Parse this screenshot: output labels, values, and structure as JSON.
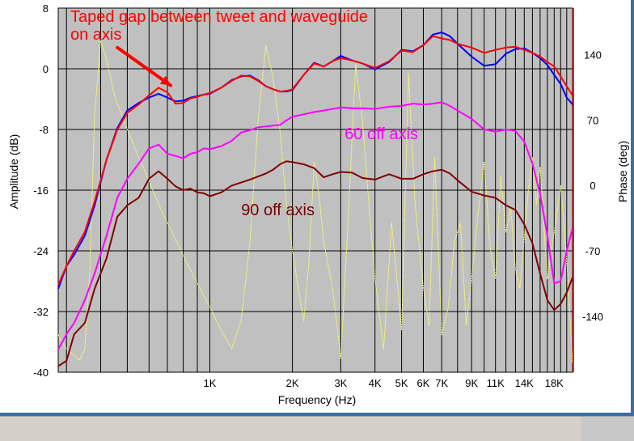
{
  "chart_data": {
    "type": "line",
    "xlabel": "Frequency (Hz)",
    "ylabel": "Amplitude (dB)",
    "y2label": "Phase (deg)",
    "x_scale": "log",
    "xlim": [
      280,
      21000
    ],
    "ylim": [
      -40,
      8
    ],
    "y2lim": [
      -200,
      190
    ],
    "grid": true,
    "background": "#c0c0c0",
    "x_ticks": [
      {
        "v": 1000,
        "label": "1K"
      },
      {
        "v": 2000,
        "label": "2K"
      },
      {
        "v": 3000,
        "label": "3K"
      },
      {
        "v": 4000,
        "label": "4K"
      },
      {
        "v": 5000,
        "label": "5K"
      },
      {
        "v": 6000,
        "label": "6K"
      },
      {
        "v": 7000,
        "label": "7K"
      },
      {
        "v": 9000,
        "label": "9K"
      },
      {
        "v": 11000,
        "label": "11K"
      },
      {
        "v": 14000,
        "label": "14K"
      },
      {
        "v": 18000,
        "label": "18K"
      }
    ],
    "y_ticks": [
      {
        "v": 8,
        "label": "8"
      },
      {
        "v": 0,
        "label": "0"
      },
      {
        "v": -8,
        "label": "-8"
      },
      {
        "v": -16,
        "label": "-16"
      },
      {
        "v": -24,
        "label": "-24"
      },
      {
        "v": -32,
        "label": "-32"
      },
      {
        "v": -40,
        "label": "-40"
      }
    ],
    "y2_ticks": [
      {
        "v": 140,
        "label": "140"
      },
      {
        "v": 70,
        "label": "70"
      },
      {
        "v": 0,
        "label": "0"
      },
      {
        "v": -70,
        "label": "-70"
      },
      {
        "v": -140,
        "label": "-140"
      }
    ],
    "annotations": [
      {
        "name": "annotation-taped-gap",
        "lines": [
          "Taped gap between tweet and waveguide",
          "on axis"
        ],
        "x": 310,
        "y": 6.2,
        "color": "#ff0000"
      },
      {
        "name": "annotation-60-off-axis",
        "lines": [
          "60 off axis"
        ],
        "x": 3100,
        "y": -9.3,
        "color": "#ff00ff"
      },
      {
        "name": "annotation-90-off-axis",
        "lines": [
          "90 off axis"
        ],
        "x": 1300,
        "y": -19.3,
        "color": "#7a0000"
      }
    ],
    "annotation_arrow": {
      "from": [
        460,
        2.8
      ],
      "to": [
        720,
        -2.2
      ],
      "color": "#ff0000"
    },
    "series": [
      {
        "key": "blue",
        "color": "#0000ff",
        "axis": "left",
        "x": [
          280,
          300,
          320,
          350,
          380,
          420,
          460,
          500,
          550,
          600,
          650,
          700,
          750,
          800,
          850,
          900,
          950,
          1000,
          1100,
          1200,
          1300,
          1400,
          1500,
          1600,
          1700,
          1800,
          1900,
          2000,
          2200,
          2400,
          2600,
          2800,
          3000,
          3300,
          3600,
          4000,
          4500,
          5000,
          5500,
          6000,
          6500,
          7000,
          7500,
          8000,
          9000,
          10000,
          11000,
          12000,
          13000,
          14000,
          15000,
          16000,
          17000,
          18000,
          19000,
          20000,
          21000
        ],
        "y": [
          -29,
          -26,
          -24.5,
          -22,
          -18,
          -12,
          -7.8,
          -5.5,
          -4.5,
          -3.8,
          -3.3,
          -3.8,
          -4.3,
          -4.2,
          -3.8,
          -3.6,
          -3.4,
          -3.3,
          -2.5,
          -1.5,
          -1,
          -0.9,
          -1.5,
          -2.3,
          -2.7,
          -3,
          -3,
          -2.8,
          -0.8,
          0.8,
          0.3,
          1,
          1.7,
          1.1,
          0.7,
          -0.1,
          0.9,
          2.5,
          2.3,
          3.1,
          4.5,
          4.8,
          4.3,
          3.3,
          1.6,
          0.4,
          0.6,
          2,
          2.6,
          2.7,
          2.1,
          1.4,
          0.5,
          -0.8,
          -2,
          -3.8,
          -4.7
        ]
      },
      {
        "key": "red",
        "color": "#ff0000",
        "axis": "left",
        "x": [
          280,
          300,
          320,
          350,
          380,
          420,
          460,
          500,
          550,
          600,
          650,
          700,
          750,
          800,
          850,
          900,
          950,
          1000,
          1100,
          1200,
          1300,
          1400,
          1500,
          1600,
          1700,
          1800,
          1900,
          2000,
          2200,
          2400,
          2600,
          2800,
          3000,
          3300,
          3600,
          4000,
          4500,
          5000,
          5500,
          6000,
          6500,
          7000,
          7500,
          8000,
          9000,
          10000,
          11000,
          12000,
          13000,
          14000,
          15000,
          16000,
          17000,
          18000,
          19000,
          20000,
          21000
        ],
        "y": [
          -28.5,
          -26,
          -24,
          -21.5,
          -17.5,
          -12,
          -8,
          -5.8,
          -4.7,
          -3.5,
          -2.5,
          -3.1,
          -4.6,
          -4.5,
          -3.9,
          -3.7,
          -3.4,
          -3.2,
          -2.5,
          -1.6,
          -0.9,
          -1,
          -1.6,
          -2.3,
          -2.7,
          -3,
          -2.9,
          -2.7,
          -0.8,
          0.7,
          0.3,
          1,
          1.4,
          1.1,
          0.7,
          0.1,
          1,
          2.4,
          2.2,
          3.1,
          4.3,
          4,
          3.8,
          3.3,
          2.8,
          2.1,
          2.5,
          2.8,
          2.9,
          2.5,
          2.1,
          1.6,
          0.9,
          0.3,
          -1,
          -2.3,
          -3.5
        ]
      },
      {
        "key": "magenta",
        "color": "#ff00ff",
        "axis": "left",
        "x": [
          280,
          300,
          320,
          350,
          380,
          420,
          460,
          500,
          550,
          600,
          650,
          700,
          750,
          800,
          850,
          900,
          950,
          1000,
          1100,
          1200,
          1300,
          1400,
          1500,
          1600,
          1700,
          1800,
          1900,
          2000,
          2200,
          2400,
          2600,
          2800,
          3000,
          3300,
          3600,
          4000,
          4500,
          5000,
          5500,
          6000,
          6500,
          7000,
          7500,
          8000,
          9000,
          10000,
          11000,
          12000,
          13000,
          14000,
          15000,
          16000,
          17000,
          18000,
          19000,
          20000,
          21000
        ],
        "y": [
          -37,
          -35,
          -33.5,
          -30.5,
          -27,
          -22,
          -17,
          -14.5,
          -12.5,
          -10.5,
          -10,
          -11.2,
          -11.5,
          -11.8,
          -11.2,
          -11,
          -10.5,
          -10.6,
          -10.2,
          -9.5,
          -8.4,
          -8.1,
          -7.7,
          -7.6,
          -7.5,
          -7.4,
          -6.8,
          -6.3,
          -6,
          -5.7,
          -5.5,
          -5.3,
          -5.1,
          -5.2,
          -5.2,
          -5.3,
          -5,
          -4.9,
          -4.6,
          -4.7,
          -4.6,
          -4.4,
          -4.9,
          -5.5,
          -6.6,
          -8,
          -8.3,
          -8,
          -8.2,
          -9.6,
          -12.5,
          -16.5,
          -22,
          -28.3,
          -28,
          -24,
          -21
        ]
      },
      {
        "key": "maroon",
        "color": "#800000",
        "axis": "left",
        "x": [
          280,
          300,
          320,
          350,
          380,
          420,
          460,
          500,
          550,
          600,
          650,
          700,
          750,
          800,
          850,
          900,
          950,
          1000,
          1100,
          1200,
          1300,
          1400,
          1500,
          1600,
          1700,
          1800,
          1900,
          2000,
          2200,
          2400,
          2600,
          2800,
          3000,
          3300,
          3600,
          4000,
          4500,
          5000,
          5500,
          6000,
          6500,
          7000,
          7500,
          8000,
          9000,
          10000,
          11000,
          12000,
          13000,
          14000,
          15000,
          16000,
          17000,
          18000,
          19000,
          20000,
          21000
        ],
        "y": [
          -39.2,
          -38.5,
          -35,
          -33.5,
          -29,
          -25,
          -19.5,
          -18,
          -17,
          -14.5,
          -13.5,
          -14.5,
          -15.5,
          -16,
          -15.8,
          -16.3,
          -16.4,
          -16.8,
          -16.3,
          -15.4,
          -15,
          -14.6,
          -14.2,
          -13.8,
          -13.3,
          -12.6,
          -12.2,
          -12.3,
          -12.6,
          -13.1,
          -14.3,
          -13.9,
          -13.6,
          -13.7,
          -14.4,
          -14.6,
          -13.9,
          -14.5,
          -14.5,
          -13.9,
          -13.5,
          -13.3,
          -13.8,
          -14.7,
          -16.2,
          -16.7,
          -17,
          -18,
          -18.6,
          -20.5,
          -23,
          -27,
          -30.5,
          -31.8,
          -31,
          -29.5,
          -27.5
        ]
      },
      {
        "key": "yellow-phase",
        "color": "#ffff66",
        "axis": "right",
        "x": [
          280,
          300,
          320,
          335,
          350,
          365,
          380,
          400,
          420,
          450,
          500,
          550,
          600,
          650,
          700,
          800,
          900,
          1000,
          1100,
          1200,
          1300,
          1400,
          1500,
          1600,
          1700,
          1800,
          1900,
          2000,
          2100,
          2200,
          2300,
          2400,
          2500,
          2600,
          2800,
          3000,
          3200,
          3400,
          3600,
          3800,
          4000,
          4300,
          4600,
          5000,
          5300,
          5600,
          6000,
          6300,
          6600,
          7000,
          7400,
          7800,
          8200,
          8600,
          9000,
          9500,
          10000,
          10500,
          11000,
          11500,
          12000,
          12500,
          13000,
          13500,
          14000,
          14500,
          15000,
          15500,
          16000,
          17000,
          18000,
          19000,
          20000,
          21000
        ],
        "y": [
          -160,
          -175,
          -182,
          -187,
          -175,
          -90,
          75,
          155,
          135,
          95,
          60,
          30,
          5,
          -20,
          -40,
          -75,
          -105,
          -130,
          -155,
          -175,
          -145,
          -60,
          70,
          150,
          115,
          60,
          -20,
          -70,
          -110,
          -145,
          -80,
          25,
          -10,
          -60,
          -110,
          -185,
          -30,
          130,
          70,
          -20,
          -100,
          -175,
          -40,
          -155,
          120,
          -20,
          -110,
          -150,
          30,
          -160,
          -130,
          -60,
          -40,
          -150,
          -100,
          -30,
          25,
          -65,
          -100,
          10,
          -50,
          -25,
          -90,
          -110,
          -55,
          -5,
          30,
          -20,
          20,
          -100,
          -50,
          0,
          -80,
          -190
        ]
      }
    ]
  }
}
